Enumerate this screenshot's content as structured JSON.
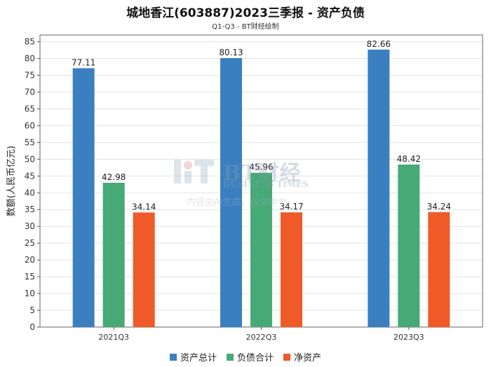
{
  "title": "城地香江(603887)2023三季报 - 资产负债",
  "subtitle": "Q1-Q3 - BT财经绘制",
  "watermark": {
    "brand": "BT财经",
    "english": "BUSINESS TIMES",
    "note": "内容由AI生成，仅供参考"
  },
  "chart_data": {
    "type": "bar",
    "categories": [
      "2021Q3",
      "2022Q3",
      "2023Q3"
    ],
    "series": [
      {
        "name": "资产总计",
        "values": [
          77.11,
          80.13,
          82.66
        ],
        "color": "#3a80c0"
      },
      {
        "name": "负债合计",
        "values": [
          42.98,
          45.96,
          48.42
        ],
        "color": "#45aa76"
      },
      {
        "name": "净资产",
        "values": [
          34.14,
          34.17,
          34.24
        ],
        "color": "#f05a28"
      }
    ],
    "ylabel": "数额(人民币亿元)",
    "xlabel": "",
    "ylim": [
      0,
      87
    ],
    "yticks": [
      0,
      5,
      10,
      15,
      20,
      25,
      30,
      35,
      40,
      45,
      50,
      55,
      60,
      65,
      70,
      75,
      80,
      85
    ],
    "grid": true,
    "legend_position": "bottom"
  }
}
